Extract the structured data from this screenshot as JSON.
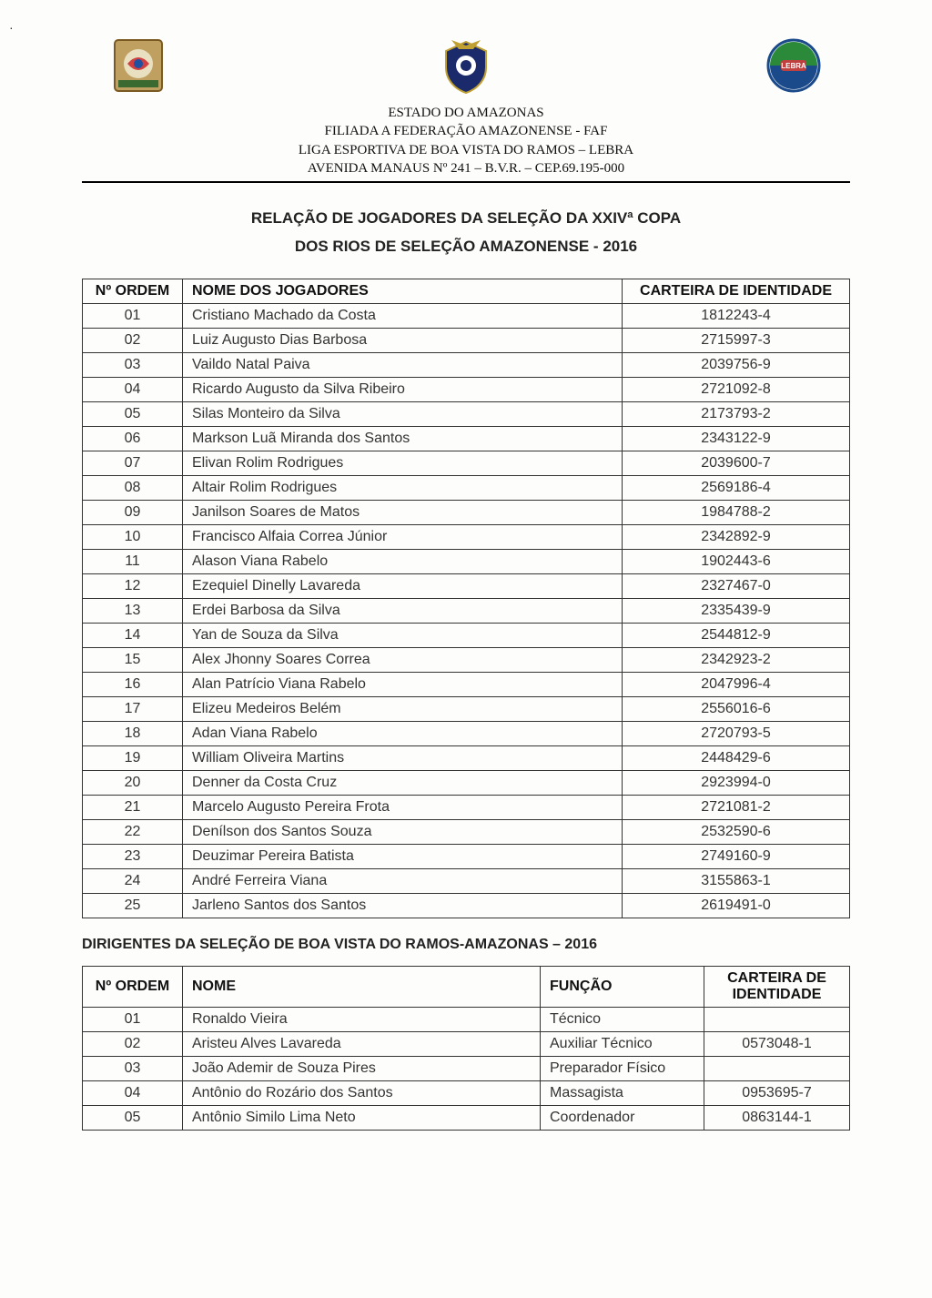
{
  "header": {
    "line1": "ESTADO DO AMAZONAS",
    "line2": "FILIADA A FEDERAÇÃO AMAZONENSE - FAF",
    "line3": "LIGA ESPORTIVA DE BOA VISTA DO RAMOS – LEBRA",
    "line4": "AVENIDA MANAUS Nº 241 – B.V.R. – CEP.69.195-000"
  },
  "title": {
    "line1": "RELAÇÃO DE JOGADORES DA SELEÇÃO DA XXIVª COPA",
    "line2": "DOS RIOS DE SELEÇÃO AMAZONENSE - 2016"
  },
  "players": {
    "columns": {
      "ordem": "Nº ORDEM",
      "nome": "NOME DOS JOGADORES",
      "id": "CARTEIRA DE IDENTIDADE"
    },
    "rows": [
      {
        "ordem": "01",
        "nome": "Cristiano Machado da Costa",
        "id": "1812243-4"
      },
      {
        "ordem": "02",
        "nome": "Luiz Augusto Dias Barbosa",
        "id": "2715997-3"
      },
      {
        "ordem": "03",
        "nome": "Vaildo Natal Paiva",
        "id": "2039756-9"
      },
      {
        "ordem": "04",
        "nome": "Ricardo Augusto da Silva Ribeiro",
        "id": "2721092-8"
      },
      {
        "ordem": "05",
        "nome": "Silas Monteiro da Silva",
        "id": "2173793-2"
      },
      {
        "ordem": "06",
        "nome": "Markson Luã Miranda dos Santos",
        "id": "2343122-9"
      },
      {
        "ordem": "07",
        "nome": "Elivan Rolim Rodrigues",
        "id": "2039600-7"
      },
      {
        "ordem": "08",
        "nome": "Altair Rolim Rodrigues",
        "id": "2569186-4"
      },
      {
        "ordem": "09",
        "nome": "Janilson Soares de Matos",
        "id": "1984788-2"
      },
      {
        "ordem": "10",
        "nome": "Francisco Alfaia Correa Júnior",
        "id": "2342892-9"
      },
      {
        "ordem": "11",
        "nome": "Alason Viana Rabelo",
        "id": "1902443-6"
      },
      {
        "ordem": "12",
        "nome": "Ezequiel Dinelly Lavareda",
        "id": "2327467-0"
      },
      {
        "ordem": "13",
        "nome": "Erdei Barbosa da Silva",
        "id": "2335439-9"
      },
      {
        "ordem": "14",
        "nome": "Yan de Souza da Silva",
        "id": "2544812-9"
      },
      {
        "ordem": "15",
        "nome": "Alex Jhonny Soares Correa",
        "id": "2342923-2"
      },
      {
        "ordem": "16",
        "nome": "Alan Patrício Viana Rabelo",
        "id": "2047996-4"
      },
      {
        "ordem": "17",
        "nome": "Elizeu Medeiros Belém",
        "id": "2556016-6"
      },
      {
        "ordem": "18",
        "nome": "Adan Viana Rabelo",
        "id": "2720793-5"
      },
      {
        "ordem": "19",
        "nome": "William Oliveira Martins",
        "id": "2448429-6"
      },
      {
        "ordem": "20",
        "nome": "Denner da Costa Cruz",
        "id": "2923994-0"
      },
      {
        "ordem": "21",
        "nome": "Marcelo Augusto Pereira Frota",
        "id": "2721081-2"
      },
      {
        "ordem": "22",
        "nome": "Denílson dos Santos Souza",
        "id": "2532590-6"
      },
      {
        "ordem": "23",
        "nome": "Deuzimar Pereira Batista",
        "id": "2749160-9"
      },
      {
        "ordem": "24",
        "nome": "André Ferreira Viana",
        "id": "3155863-1"
      },
      {
        "ordem": "25",
        "nome": "Jarleno Santos dos Santos",
        "id": "2619491-0"
      }
    ]
  },
  "staff_title": "DIRIGENTES DA SELEÇÃO DE BOA VISTA DO RAMOS-AMAZONAS – 2016",
  "staff": {
    "columns": {
      "ordem": "Nº ORDEM",
      "nome": "NOME",
      "funcao": "FUNÇÃO",
      "id": "CARTEIRA DE IDENTIDADE"
    },
    "rows": [
      {
        "ordem": "01",
        "nome": "Ronaldo Vieira",
        "funcao": "Técnico",
        "id": ""
      },
      {
        "ordem": "02",
        "nome": "Aristeu Alves Lavareda",
        "funcao": "Auxiliar Técnico",
        "id": "0573048-1"
      },
      {
        "ordem": "03",
        "nome": "João Ademir de Souza Pires",
        "funcao": "Preparador Físico",
        "id": ""
      },
      {
        "ordem": "04",
        "nome": "Antônio do Rozário dos Santos",
        "funcao": "Massagista",
        "id": "0953695-7"
      },
      {
        "ordem": "05",
        "nome": "Antônio Similo Lima Neto",
        "funcao": "Coordenador",
        "id": "0863144-1"
      }
    ]
  },
  "colors": {
    "page_bg": "#fdfdfb",
    "text": "#222222",
    "border": "#333333"
  }
}
